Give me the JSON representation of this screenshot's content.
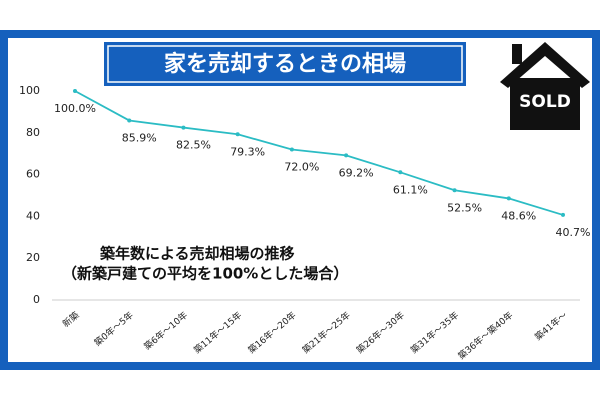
{
  "chart_data": {
    "type": "line",
    "title": "家を売却するときの相場",
    "badge": "SOLD",
    "annotations": [
      "築年数による売却相場の推移",
      "（新築戸建ての平均を100%とした場合）"
    ],
    "categories": [
      "新築",
      "築0年～5年",
      "築6年～10年",
      "築11年～15年",
      "築16年～20年",
      "築21年～25年",
      "築26年～30年",
      "築31年～35年",
      "築36年～築40年",
      "築41年～"
    ],
    "values": [
      100,
      85.9,
      82.5,
      79.3,
      72.0,
      69.2,
      61.1,
      52.5,
      48.6,
      40.7
    ],
    "value_labels": [
      "100.0%",
      "85.9%",
      "82.5%",
      "79.3%",
      "72.0%",
      "69.2%",
      "61.1%",
      "52.5%",
      "48.6%",
      "40.7%"
    ],
    "color": "#2bbcc4",
    "ylim": [
      0,
      100
    ],
    "yticks": [
      0,
      20,
      40,
      60,
      80,
      100
    ],
    "grid": false
  }
}
